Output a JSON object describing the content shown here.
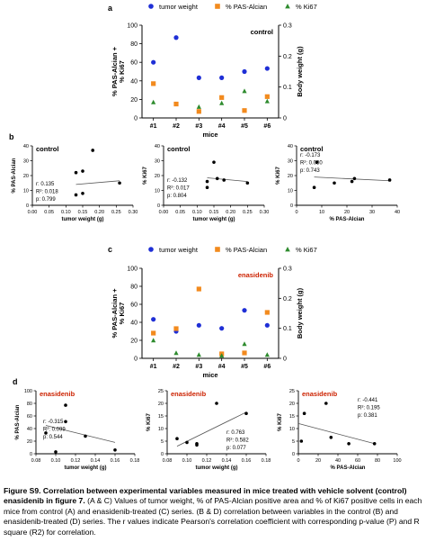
{
  "charts": {
    "A": {
      "panel_letter": "a",
      "type": "scatter",
      "group_label": "control",
      "legend": [
        "tumor weight",
        "% PAS-Alcian",
        "% Ki67"
      ],
      "ylabel_left": [
        "% PAS-Alcian +",
        "% Ki67"
      ],
      "ylabel_right": "Body weight (g)",
      "xlabel": "mice",
      "categories": [
        "#1",
        "#2",
        "#3",
        "#4",
        "#5",
        "#6"
      ],
      "left_ticks": [
        "0",
        "20",
        "40",
        "60",
        "80",
        "100"
      ],
      "right_ticks": [
        "0",
        "0.1",
        "0.2",
        "0.3"
      ],
      "ylim_left": [
        0,
        100
      ],
      "ylim_right": [
        0,
        0.3
      ],
      "series": [
        {
          "name": "tumor weight",
          "axis": "right",
          "color": "#1f2fd6",
          "marker": "circle",
          "values": [
            0.18,
            0.26,
            0.13,
            0.13,
            0.15,
            0.16
          ]
        },
        {
          "name": "% PAS-Alcian",
          "axis": "left",
          "color": "#f28a1e",
          "marker": "square",
          "values": [
            37,
            15,
            7,
            22,
            8,
            23
          ]
        },
        {
          "name": "% Ki67",
          "axis": "left",
          "color": "#2e8b2e",
          "marker": "triangle",
          "values": [
            17,
            null,
            12,
            16,
            29,
            18
          ]
        }
      ]
    },
    "B": {
      "panel_letter": "b",
      "plots": [
        {
          "group": "control",
          "ylabel": "% PAS-Alcian",
          "xlabel": "tumor weight (g)",
          "x_ticks": [
            "0.00",
            "0.05",
            "0.10",
            "0.15",
            "0.20",
            "0.25",
            "0.30"
          ],
          "y_ticks": [
            "0",
            "10",
            "20",
            "30",
            "40"
          ],
          "xlim": [
            0,
            0.3
          ],
          "ylim": [
            0,
            40
          ],
          "points": [
            [
              0.13,
              22
            ],
            [
              0.15,
              23
            ],
            [
              0.18,
              37
            ],
            [
              0.13,
              7
            ],
            [
              0.15,
              8
            ],
            [
              0.26,
              15
            ]
          ],
          "fit": [
            [
              0.13,
              14
            ],
            [
              0.26,
              16.5
            ]
          ],
          "stats": [
            "r:   0.135",
            "R²: 0.018",
            "p:  0.799"
          ]
        },
        {
          "group": "control",
          "ylabel": "% Ki67",
          "xlabel": "tumor weight (g)",
          "x_ticks": [
            "0.00",
            "0.05",
            "0.10",
            "0.15",
            "0.20",
            "0.25",
            "0.30"
          ],
          "y_ticks": [
            "0",
            "10",
            "20",
            "30",
            "40"
          ],
          "xlim": [
            0,
            0.3
          ],
          "ylim": [
            0,
            40
          ],
          "points": [
            [
              0.13,
              12
            ],
            [
              0.13,
              16
            ],
            [
              0.15,
              29
            ],
            [
              0.18,
              17
            ],
            [
              0.16,
              18
            ],
            [
              0.25,
              15
            ]
          ],
          "fit": [
            [
              0.13,
              18.5
            ],
            [
              0.25,
              16
            ]
          ],
          "stats": [
            "r:   -0.132",
            "R²: 0.017",
            "p:  0.804"
          ]
        },
        {
          "group": "control",
          "ylabel": "% Ki67",
          "xlabel": "% PAS-Alcian",
          "x_ticks": [
            "0",
            "10",
            "20",
            "30",
            "40"
          ],
          "y_ticks": [
            "0",
            "10",
            "20",
            "30",
            "40"
          ],
          "xlim": [
            0,
            40
          ],
          "ylim": [
            0,
            40
          ],
          "points": [
            [
              7,
              12
            ],
            [
              8,
              29
            ],
            [
              15,
              15
            ],
            [
              22,
              16
            ],
            [
              23,
              18
            ],
            [
              37,
              17
            ]
          ],
          "fit": [
            [
              7,
              19
            ],
            [
              37,
              16.5
            ]
          ],
          "stats": [
            "r:  -0.173",
            "R²: 0.030",
            "p:  0.743"
          ]
        }
      ]
    },
    "C": {
      "panel_letter": "c",
      "type": "scatter",
      "group_label": "enasidenib",
      "legend": [
        "tumor weight",
        "% PAS-Alcian",
        "% Ki67"
      ],
      "ylabel_left": [
        "% PAS-Alcian +",
        "% Ki67"
      ],
      "ylabel_right": "Body weight (g)",
      "xlabel": "mice",
      "categories": [
        "#1",
        "#2",
        "#3",
        "#4",
        "#5",
        "#6"
      ],
      "left_ticks": [
        "0",
        "20",
        "40",
        "60",
        "80",
        "100"
      ],
      "right_ticks": [
        "0",
        "0.1",
        "0.2",
        "0.3"
      ],
      "ylim_left": [
        0,
        100
      ],
      "ylim_right": [
        0,
        0.3
      ],
      "series": [
        {
          "name": "tumor weight",
          "axis": "right",
          "color": "#1f2fd6",
          "marker": "circle",
          "values": [
            0.13,
            0.09,
            0.11,
            0.1,
            0.16,
            0.11
          ]
        },
        {
          "name": "% PAS-Alcian",
          "axis": "left",
          "color": "#f28a1e",
          "marker": "square",
          "values": [
            28,
            33,
            77,
            5,
            6,
            51
          ]
        },
        {
          "name": "% Ki67",
          "axis": "left",
          "color": "#2e8b2e",
          "marker": "triangle",
          "values": [
            20,
            6,
            4,
            3,
            16,
            4
          ]
        }
      ]
    },
    "D": {
      "panel_letter": "d",
      "plots": [
        {
          "group": "enasidenib",
          "ylabel": "% PAS-Alcian",
          "xlabel": "tumor weight (g)",
          "x_ticks": [
            "0.08",
            "0.10",
            "0.12",
            "0.14",
            "0.16",
            "0.18"
          ],
          "y_ticks": [
            "0",
            "20",
            "40",
            "60",
            "80",
            "100"
          ],
          "xlim": [
            0.08,
            0.18
          ],
          "ylim": [
            0,
            100
          ],
          "points": [
            [
              0.09,
              33
            ],
            [
              0.1,
              3
            ],
            [
              0.11,
              77
            ],
            [
              0.11,
              51
            ],
            [
              0.13,
              28
            ],
            [
              0.16,
              6
            ]
          ],
          "fit": [
            [
              0.09,
              45
            ],
            [
              0.16,
              18
            ]
          ],
          "stats": [
            "r:  -0.315",
            "R²: 0.099",
            "p:  0.544"
          ]
        },
        {
          "group": "enasidenib",
          "ylabel": "% Ki67",
          "xlabel": "tumor weight (g)",
          "x_ticks": [
            "0.08",
            "0.10",
            "0.12",
            "0.14",
            "0.16",
            "0.18"
          ],
          "y_ticks": [
            "0",
            "5",
            "10",
            "15",
            "20",
            "25"
          ],
          "xlim": [
            0.08,
            0.18
          ],
          "ylim": [
            0,
            25
          ],
          "points": [
            [
              0.09,
              6
            ],
            [
              0.1,
              4.5
            ],
            [
              0.11,
              3.5
            ],
            [
              0.13,
              20
            ],
            [
              0.16,
              16
            ],
            [
              0.11,
              4
            ]
          ],
          "fit": [
            [
              0.09,
              3
            ],
            [
              0.16,
              16.5
            ]
          ],
          "stats": [
            "r:  0.763",
            "R²: 0.582",
            "p:  0.077"
          ]
        },
        {
          "group": "enasidenib",
          "ylabel": "% Ki67",
          "xlabel": "% PAS-Alcian",
          "x_ticks": [
            "0",
            "20",
            "40",
            "60",
            "80",
            "100"
          ],
          "y_ticks": [
            "0",
            "5",
            "10",
            "15",
            "20",
            "25"
          ],
          "xlim": [
            0,
            100
          ],
          "ylim": [
            0,
            25
          ],
          "points": [
            [
              3,
              5
            ],
            [
              6,
              16
            ],
            [
              28,
              20
            ],
            [
              33,
              6.5
            ],
            [
              51,
              4
            ],
            [
              77,
              4
            ]
          ],
          "fit": [
            [
              0,
              12
            ],
            [
              77,
              4
            ]
          ],
          "stats": [
            "r:  -0.441",
            "R²: 0.195",
            "p:  0.381"
          ]
        }
      ]
    }
  },
  "caption": {
    "bold": "Figure S9. Correlation between experimental variables measured in mice treated with vehicle solvent (control) enasidenib in figure 7.",
    "rest": " (A & C) Values of tumor weight, % of PAS-Alcian positive area and % of Ki67 positive cells in each mice from control (A) and enasidenib-treated (C) series. (B & D) correlation between variables in the control (B) and enasidenib-treated (D) series. The r values indicate Pearson's correlation coefficient with corresponding p-value (P) and R square (R2) for correlation."
  },
  "colors": {
    "blue": "#1f2fd6",
    "orange": "#f28a1e",
    "green": "#2e8b2e",
    "red_label": "#cc2200"
  }
}
